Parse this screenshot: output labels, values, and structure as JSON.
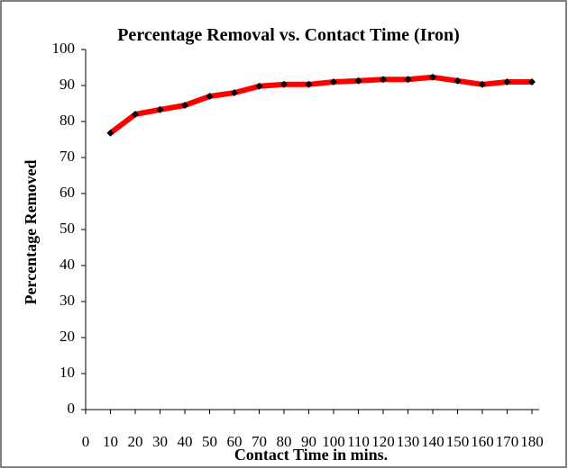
{
  "chart_data": {
    "type": "line",
    "title": "Percentage Removal vs. Contact Time (Iron)",
    "x_label": "Contact Time in mins.",
    "y_label": "Percentage Removed",
    "x": [
      10,
      20,
      30,
      40,
      50,
      60,
      70,
      80,
      90,
      100,
      110,
      120,
      130,
      140,
      150,
      160,
      170,
      180
    ],
    "series": [
      {
        "name": "Iron",
        "color": "#ff0000",
        "marker_color": "#000000",
        "values": [
          76.8,
          82,
          83.3,
          84.5,
          87,
          88,
          89.8,
          90.3,
          90.3,
          91,
          91.3,
          91.7,
          91.7,
          92.3,
          91.3,
          90.3,
          91,
          91
        ]
      }
    ],
    "xlim": [
      0,
      180
    ],
    "xticks": [
      0,
      10,
      20,
      30,
      40,
      50,
      60,
      70,
      80,
      90,
      100,
      110,
      120,
      130,
      140,
      150,
      160,
      170,
      180
    ],
    "ylim": [
      0,
      100
    ],
    "yticks": [
      0,
      10,
      20,
      30,
      40,
      50,
      60,
      70,
      80,
      90,
      100
    ],
    "grid": false
  }
}
